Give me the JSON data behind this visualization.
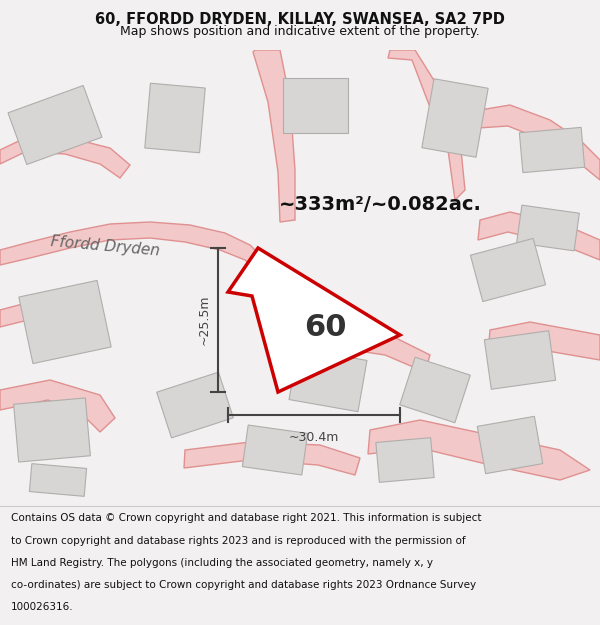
{
  "title_line1": "60, FFORDD DRYDEN, KILLAY, SWANSEA, SA2 7PD",
  "title_line2": "Map shows position and indicative extent of the property.",
  "footer_lines": [
    "Contains OS data © Crown copyright and database right 2021. This information is subject",
    "to Crown copyright and database rights 2023 and is reproduced with the permission of",
    "HM Land Registry. The polygons (including the associated geometry, namely x, y",
    "co-ordinates) are subject to Crown copyright and database rights 2023 Ordnance Survey",
    "100026316."
  ],
  "area_label": "~333m²/~0.082ac.",
  "property_number": "60",
  "dim_width": "~30.4m",
  "dim_height": "~25.5m",
  "road_label": "Ffordd Dryden",
  "bg_color": "#f2f0f0",
  "map_bg": "#f5f3f0",
  "property_fill": "#ffffff",
  "property_edge": "#cc0000",
  "building_fill": "#d8d6d4",
  "building_edge": "#b0aeac",
  "road_fill": "#f2c8c8",
  "road_edge": "#e09090",
  "dim_color": "#444444",
  "title_color": "#111111",
  "footer_color": "#111111",
  "road_label_color": "#666666",
  "map_line_color": "#e08080",
  "title_fontsize": 10.5,
  "subtitle_fontsize": 9,
  "area_fontsize": 14,
  "number_fontsize": 22,
  "road_label_fontsize": 11,
  "dim_fontsize": 9,
  "footer_fontsize": 7.5
}
